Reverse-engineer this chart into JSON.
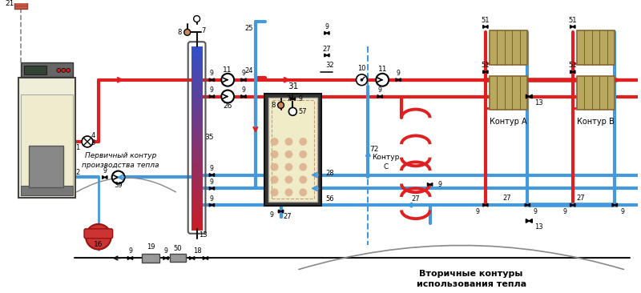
{
  "bg_color": "#ffffff",
  "red": "#e02020",
  "blue": "#4499dd",
  "black": "#111111",
  "gray": "#888888",
  "pipe_lw": 3.0,
  "thin_lw": 1.5,
  "title1": "Первичный контур",
  "title2": "производства тепла",
  "title3": "Вторичные контуры",
  "title4": "использования тепла",
  "label_A": "Контур А",
  "label_B": "Контур В",
  "label_C": "Контур\nС"
}
